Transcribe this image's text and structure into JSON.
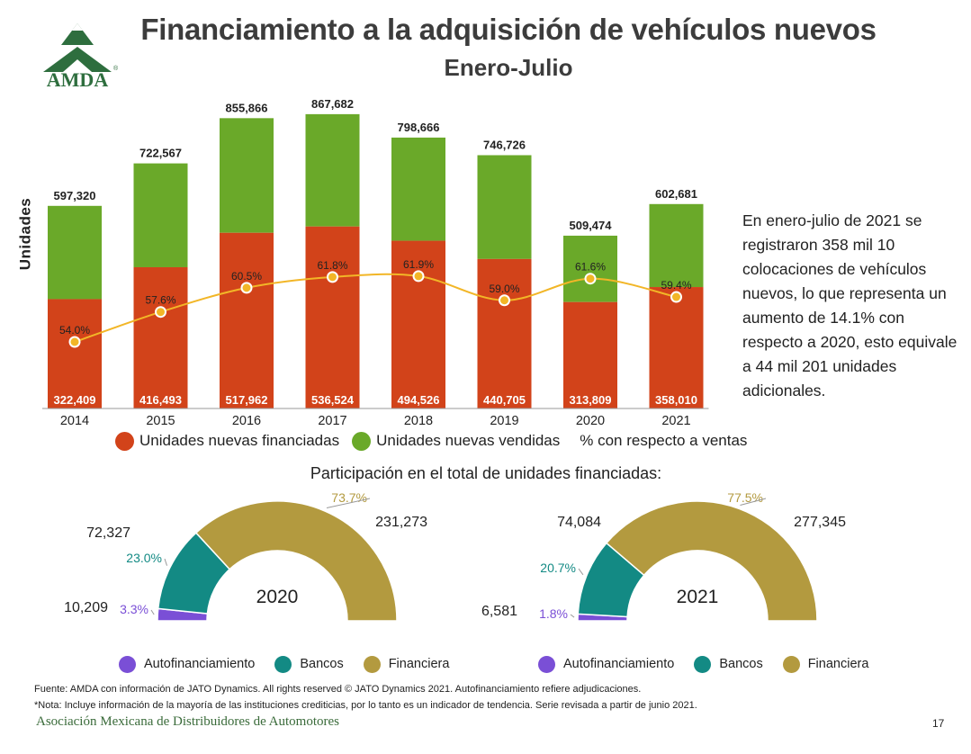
{
  "header": {
    "title": "Financiamiento a la adquisición de vehículos nuevos",
    "subtitle": "Enero-Julio",
    "logo_text": "AMDA",
    "logo_color": "#2e6e3e"
  },
  "chart_data": [
    {
      "type": "bar",
      "stacked": true,
      "ylabel": "Unidades",
      "categories": [
        "2014",
        "2015",
        "2016",
        "2017",
        "2018",
        "2019",
        "2020",
        "2021"
      ],
      "series": [
        {
          "name": "Unidades nuevas financiadas",
          "color": "#d2431a",
          "values": [
            322409,
            416493,
            517962,
            536524,
            494526,
            440705,
            313809,
            358010
          ],
          "labels": [
            "322,409",
            "416,493",
            "517,962",
            "536,524",
            "494,526",
            "440,705",
            "313,809",
            "358,010"
          ]
        },
        {
          "name": "Unidades nuevas vendidas",
          "color": "#6aa929",
          "totals": [
            597320,
            722567,
            855866,
            867682,
            798666,
            746726,
            509474,
            602681
          ],
          "labels": [
            "597,320",
            "722,567",
            "855,866",
            "867,682",
            "798,666",
            "746,726",
            "509,474",
            "602,681"
          ]
        }
      ],
      "line": {
        "name": "% con respecto a ventas",
        "color": "#f2b627",
        "values": [
          54.0,
          57.6,
          60.5,
          61.8,
          61.9,
          59.0,
          61.6,
          59.4
        ],
        "labels": [
          "54.0%",
          "57.6%",
          "60.5%",
          "61.8%",
          "61.9%",
          "59.0%",
          "61.6%",
          "59.4%"
        ]
      },
      "legend": [
        "Unidades nuevas financiadas",
        "Unidades nuevas vendidas",
        "% con respecto a ventas"
      ]
    },
    {
      "type": "pie",
      "subtype": "half-donut",
      "title": "Participación en el total de unidades financiadas:",
      "center_label": "2020",
      "slices": [
        {
          "name": "Autofinanciamiento",
          "value": 10209,
          "value_label": "10,209",
          "pct": 3.3,
          "pct_label": "3.3%",
          "color": "#7a4fd6"
        },
        {
          "name": "Bancos",
          "value": 72327,
          "value_label": "72,327",
          "pct": 23.0,
          "pct_label": "23.0%",
          "color": "#138a84"
        },
        {
          "name": "Financiera",
          "value": 231273,
          "value_label": "231,273",
          "pct": 73.7,
          "pct_label": "73.7%",
          "color": "#b39a3f"
        }
      ]
    },
    {
      "type": "pie",
      "subtype": "half-donut",
      "center_label": "2021",
      "slices": [
        {
          "name": "Autofinanciamiento",
          "value": 6581,
          "value_label": "6,581",
          "pct": 1.8,
          "pct_label": "1.8%",
          "color": "#7a4fd6"
        },
        {
          "name": "Bancos",
          "value": 74084,
          "value_label": "74,084",
          "pct": 20.7,
          "pct_label": "20.7%",
          "color": "#138a84"
        },
        {
          "name": "Financiera",
          "value": 277345,
          "value_label": "277,345",
          "pct": 77.5,
          "pct_label": "77.5%",
          "color": "#b39a3f"
        }
      ]
    }
  ],
  "note": "En enero-julio de 2021 se registraron 358 mil 10 colocaciones de vehículos nuevos, lo que representa un aumento de 14.1% con respecto a 2020, esto equivale a 44 mil 201 unidades adicionales.",
  "donut_legend": {
    "items": [
      {
        "label": "Autofinanciamiento",
        "color": "#7a4fd6"
      },
      {
        "label": "Bancos",
        "color": "#138a84"
      },
      {
        "label": "Financiera",
        "color": "#b39a3f"
      }
    ]
  },
  "footer": {
    "source": "Fuente: AMDA con información de JATO Dynamics. All rights reserved © JATO Dynamics 2021. Autofinanciamiento refiere adjudicaciones.",
    "nota": "*Nota: Incluye información de la mayoría de las instituciones crediticias, por lo tanto es un indicador de tendencia. Serie revisada a partir de junio 2021.",
    "org": "Asociación Mexicana de Distribuidores de Automotores",
    "page": "17"
  }
}
